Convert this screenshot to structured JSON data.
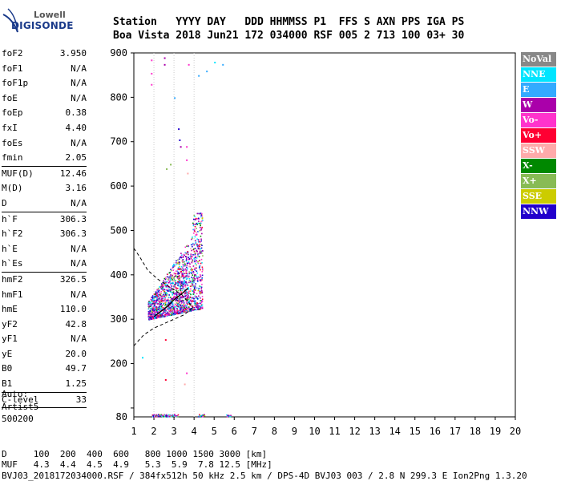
{
  "brand": {
    "line1": "Lowell",
    "line2": "DIGISONDE"
  },
  "header": {
    "line1": "Station   YYYY DAY   DDD HHMMSS P1  FFS S AXN PPS IGA PS",
    "line2": "Boa Vista 2018 Jun21 172 034000 RSF 005 2 713 100 03+ 30"
  },
  "params": [
    [
      {
        "label": "foF2",
        "value": "3.950"
      },
      {
        "label": "foF1",
        "value": "N/A"
      },
      {
        "label": "foF1p",
        "value": "N/A"
      },
      {
        "label": "foE",
        "value": "N/A"
      },
      {
        "label": "foEp",
        "value": "0.38"
      },
      {
        "label": "fxI",
        "value": "4.40"
      },
      {
        "label": "foEs",
        "value": "N/A"
      },
      {
        "label": "fmin",
        "value": "2.05"
      }
    ],
    [
      {
        "label": "MUF(D)",
        "value": "12.46"
      },
      {
        "label": "M(D)",
        "value": "3.16"
      },
      {
        "label": "D",
        "value": "N/A"
      }
    ],
    [
      {
        "label": "h`F",
        "value": "306.3"
      },
      {
        "label": "h`F2",
        "value": "306.3"
      },
      {
        "label": "h`E",
        "value": "N/A"
      },
      {
        "label": "h`Es",
        "value": "N/A"
      }
    ],
    [
      {
        "label": "hmF2",
        "value": "326.5"
      },
      {
        "label": "hmF1",
        "value": "N/A"
      },
      {
        "label": "hmE",
        "value": "110.0"
      },
      {
        "label": "yF2",
        "value": "42.8"
      },
      {
        "label": "yF1",
        "value": "N/A"
      },
      {
        "label": "yE",
        "value": "20.0"
      },
      {
        "label": "B0",
        "value": "49.7"
      },
      {
        "label": "B1",
        "value": "1.25"
      }
    ],
    [
      {
        "label": "C-level",
        "value": "33"
      }
    ]
  ],
  "auto": {
    "line1": "Auto:",
    "line2": "Artist5",
    "line3": "500200"
  },
  "legend": [
    {
      "label": "NoVal",
      "color": "#888888"
    },
    {
      "label": "NNE",
      "color": "#00e5ff"
    },
    {
      "label": "E",
      "color": "#33aaff"
    },
    {
      "label": "W",
      "color": "#aa00aa"
    },
    {
      "label": "Vo-",
      "color": "#ff33cc"
    },
    {
      "label": "Vo+",
      "color": "#ff0033"
    },
    {
      "label": "SSW",
      "color": "#ffaaaa"
    },
    {
      "label": "X-",
      "color": "#008800"
    },
    {
      "label": "X+",
      "color": "#88bb55"
    },
    {
      "label": "SSE",
      "color": "#cccc00"
    },
    {
      "label": "NNW",
      "color": "#2200cc"
    }
  ],
  "muf_table": {
    "line1": "D     100  200  400  600   800 1000 1500 3000 [km]",
    "line2": "MUF   4.3  4.4  4.5  4.9   5.3  5.9  7.8 12.5 [MHz]"
  },
  "footer": "BVJ03_2018172034000.RSF / 384fx512h 50 kHz 2.5 km / DPS-4D BVJ03 003 / 2.8 N 299.3 E Ion2Png 1.3.20",
  "chart_data": {
    "type": "scatter",
    "xlim": [
      1,
      20
    ],
    "ylim": [
      80,
      900
    ],
    "x_ticks": [
      1,
      2,
      3,
      4,
      5,
      6,
      7,
      8,
      9,
      10,
      11,
      12,
      13,
      14,
      15,
      16,
      17,
      18,
      19,
      20
    ],
    "y_ticks": [
      100,
      200,
      300,
      400,
      500,
      600,
      700,
      800,
      900
    ],
    "y_tick_labels": [
      "",
      "200",
      "300",
      "400",
      "500",
      "600",
      "700",
      "800",
      "900"
    ],
    "y_bottom_label": "80",
    "grid": true,
    "grid_x": [
      2,
      3,
      4
    ],
    "echo_trace": {
      "x_range": [
        1.7,
        4.4
      ],
      "y_range": [
        290,
        540
      ]
    },
    "profile": {
      "lower": [
        [
          1,
          240
        ],
        [
          1.5,
          265
        ],
        [
          2,
          280
        ],
        [
          2.5,
          290
        ],
        [
          3,
          300
        ],
        [
          3.5,
          310
        ],
        [
          3.95,
          326
        ]
      ],
      "upper": [
        [
          1,
          460
        ],
        [
          1.3,
          440
        ],
        [
          1.7,
          410
        ],
        [
          2.2,
          390
        ],
        [
          2.8,
          372
        ],
        [
          3.4,
          355
        ],
        [
          3.95,
          326
        ]
      ]
    },
    "trace": [
      [
        2.0,
        306
      ],
      [
        2.3,
        316
      ],
      [
        2.7,
        330
      ],
      [
        3.0,
        344
      ],
      [
        3.4,
        358
      ],
      [
        3.7,
        370
      ]
    ],
    "sparse_points": [
      {
        "x": 1.85,
        "y": 885,
        "c": "#ff33cc"
      },
      {
        "x": 1.85,
        "y": 855,
        "c": "#ff33cc"
      },
      {
        "x": 1.85,
        "y": 830,
        "c": "#ff33cc"
      },
      {
        "x": 2.5,
        "y": 890,
        "c": "#aa00aa"
      },
      {
        "x": 2.5,
        "y": 875,
        "c": "#aa00aa"
      },
      {
        "x": 3.2,
        "y": 730,
        "c": "#2200cc"
      },
      {
        "x": 3.25,
        "y": 705,
        "c": "#2200cc"
      },
      {
        "x": 3.3,
        "y": 690,
        "c": "#aa00aa"
      },
      {
        "x": 3.6,
        "y": 690,
        "c": "#ff33cc"
      },
      {
        "x": 3.6,
        "y": 660,
        "c": "#ff33cc"
      },
      {
        "x": 3.65,
        "y": 630,
        "c": "#ffaaaa"
      },
      {
        "x": 3.0,
        "y": 800,
        "c": "#33aaff"
      },
      {
        "x": 3.7,
        "y": 875,
        "c": "#ff33cc"
      },
      {
        "x": 4.2,
        "y": 850,
        "c": "#33aaff"
      },
      {
        "x": 4.6,
        "y": 860,
        "c": "#33aaff"
      },
      {
        "x": 5.0,
        "y": 880,
        "c": "#00e5ff"
      },
      {
        "x": 5.4,
        "y": 875,
        "c": "#33aaff"
      },
      {
        "x": 2.6,
        "y": 640,
        "c": "#88bb55"
      },
      {
        "x": 2.8,
        "y": 650,
        "c": "#88bb55"
      },
      {
        "x": 1.4,
        "y": 215,
        "c": "#00e5ff"
      },
      {
        "x": 2.55,
        "y": 255,
        "c": "#ff0033"
      },
      {
        "x": 2.55,
        "y": 165,
        "c": "#ff0033"
      },
      {
        "x": 3.6,
        "y": 180,
        "c": "#ff33cc"
      },
      {
        "x": 3.5,
        "y": 155,
        "c": "#ffaaaa"
      }
    ],
    "baseline_band": {
      "y": 85,
      "x_ranges": [
        [
          1.9,
          3.2
        ],
        [
          4.2,
          4.5
        ],
        [
          5.6,
          5.8
        ]
      ]
    }
  }
}
